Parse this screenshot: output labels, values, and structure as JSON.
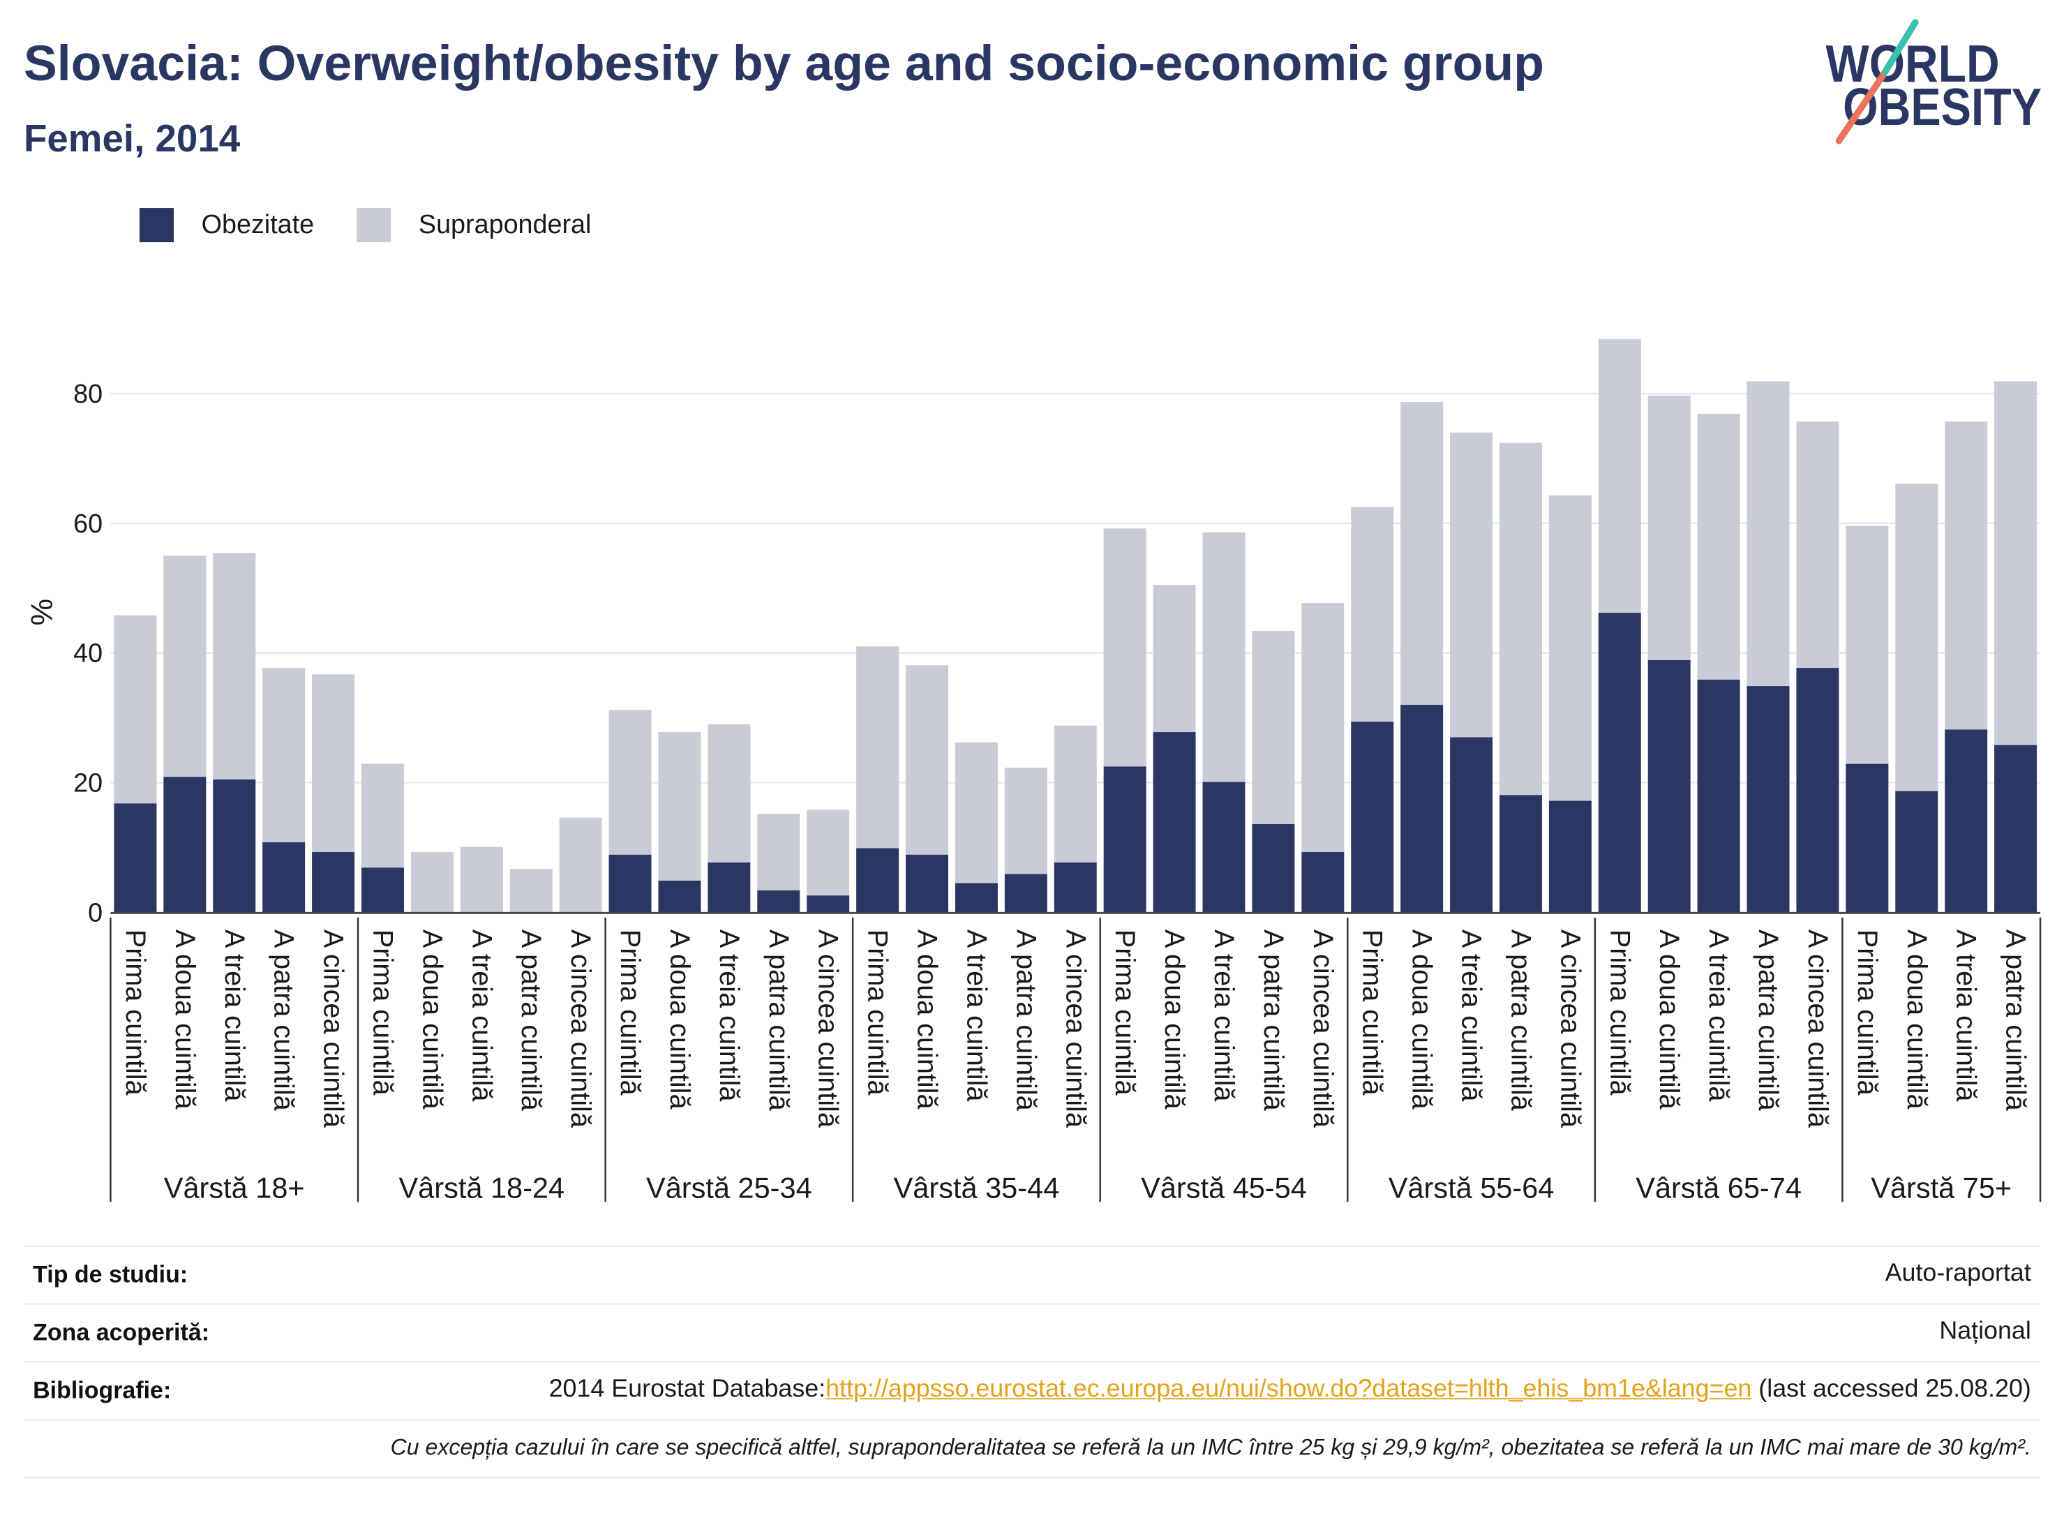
{
  "logo": {
    "line1": "WORLD",
    "line2": "OBESITY",
    "text_color": "#2b3763",
    "accent_top": "#3bbfae",
    "accent_bottom": "#e9735c"
  },
  "chart_data": {
    "type": "bar",
    "stacked": true,
    "title": "Slovacia: Overweight/obesity by age and socio-economic group",
    "subtitle": "Femei, 2014",
    "xlabel": "",
    "ylabel": "%",
    "ylim": [
      0,
      92
    ],
    "yticks": [
      0,
      20,
      40,
      60,
      80
    ],
    "grid": true,
    "legend_position": "top-left",
    "groups": [
      {
        "label": "Vârstă 18+",
        "categories": [
          "Prima cuintilă",
          "A doua cuintilă",
          "A treia cuintilă",
          "A patra cuintilă",
          "A cincea cuintilă"
        ]
      },
      {
        "label": "Vârstă 18-24",
        "categories": [
          "Prima cuintilă",
          "A doua cuintilă",
          "A treia cuintilă",
          "A patra cuintilă",
          "A cincea cuintilă"
        ]
      },
      {
        "label": "Vârstă 25-34",
        "categories": [
          "Prima cuintilă",
          "A doua cuintilă",
          "A treia cuintilă",
          "A patra cuintilă",
          "A cincea cuintilă"
        ]
      },
      {
        "label": "Vârstă 35-44",
        "categories": [
          "Prima cuintilă",
          "A doua cuintilă",
          "A treia cuintilă",
          "A patra cuintilă",
          "A cincea cuintilă"
        ]
      },
      {
        "label": "Vârstă 45-54",
        "categories": [
          "Prima cuintilă",
          "A doua cuintilă",
          "A treia cuintilă",
          "A patra cuintilă",
          "A cincea cuintilă"
        ]
      },
      {
        "label": "Vârstă 55-64",
        "categories": [
          "Prima cuintilă",
          "A doua cuintilă",
          "A treia cuintilă",
          "A patra cuintilă",
          "A cincea cuintilă"
        ]
      },
      {
        "label": "Vârstă 65-74",
        "categories": [
          "Prima cuintilă",
          "A doua cuintilă",
          "A treia cuintilă",
          "A patra cuintilă",
          "A cincea cuintilă"
        ]
      },
      {
        "label": "Vârstă 75+",
        "categories": [
          "Prima cuintilă",
          "A doua cuintilă",
          "A treia cuintilă",
          "A patra cuintilă"
        ]
      }
    ],
    "series": [
      {
        "name": "Obezitate",
        "color": "#2b3763",
        "values": [
          [
            16.8,
            20.9,
            20.5,
            10.8,
            9.3
          ],
          [
            6.9,
            0,
            0,
            0,
            0
          ],
          [
            8.9,
            4.9,
            7.7,
            3.4,
            2.6
          ],
          [
            9.9,
            8.9,
            4.5,
            5.9,
            7.7
          ],
          [
            22.5,
            27.8,
            20.1,
            13.6,
            9.3
          ],
          [
            29.4,
            32.0,
            27.0,
            18.1,
            17.2
          ],
          [
            46.2,
            38.9,
            35.9,
            34.9,
            37.7
          ],
          [
            22.9,
            18.7,
            28.2,
            25.8
          ]
        ]
      },
      {
        "name": "Supraponderal",
        "color": "#c9cbd7",
        "values": [
          [
            29.0,
            34.1,
            34.9,
            26.9,
            27.4
          ],
          [
            16.0,
            9.3,
            10.1,
            6.7,
            14.6
          ],
          [
            22.3,
            22.9,
            21.3,
            11.8,
            13.2
          ],
          [
            31.1,
            29.2,
            21.7,
            16.4,
            21.1
          ],
          [
            36.7,
            22.7,
            38.5,
            29.8,
            38.4
          ],
          [
            33.1,
            46.7,
            47.0,
            54.3,
            47.1
          ],
          [
            42.2,
            40.8,
            41.0,
            47.0,
            38.0
          ],
          [
            36.7,
            47.4,
            47.5,
            56.1
          ]
        ]
      }
    ]
  },
  "details": {
    "rows": [
      {
        "label": "Tip de studiu:",
        "value": "Auto-raportat"
      },
      {
        "label": "Zona acoperită:",
        "value": "Național"
      }
    ],
    "bibliography": {
      "label": "Bibliografie:",
      "prefix": "2014 Eurostat Database:",
      "link": "http://appsso.eurostat.ec.europa.eu/nui/show.do?dataset=hlth_ehis_bm1e&lang=en",
      "suffix": " (last accessed 25.08.20)",
      "link_color": "#e3a21a"
    },
    "note": "Cu excepția cazului în care se specifică altfel, supraponderalitatea se referă la un IMC între 25 kg și 29,9 kg/m², obezitatea se referă la un IMC mai mare de 30 kg/m²."
  }
}
